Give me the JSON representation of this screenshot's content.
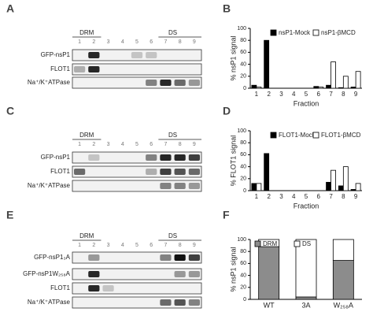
{
  "panel_labels": [
    "A",
    "B",
    "C",
    "D",
    "E",
    "F"
  ],
  "blots": [
    {
      "groups": [
        "DRM",
        "DS"
      ],
      "lanes": [
        "1",
        "2",
        "3",
        "4",
        "5",
        "6",
        "7",
        "8",
        "9"
      ],
      "rows": [
        "GFP-nsP1",
        "FLOT1",
        "Na⁺/K⁺ATPase"
      ]
    },
    {
      "groups": [
        "DRM",
        "DS"
      ],
      "lanes": [
        "1",
        "2",
        "3",
        "4",
        "5",
        "6",
        "7",
        "8",
        "9"
      ],
      "rows": [
        "GFP-nsP1",
        "FLOT1",
        "Na⁺/K⁺ATPase"
      ]
    },
    {
      "groups": [
        "DRM",
        "DS"
      ],
      "lanes": [
        "1",
        "2",
        "3",
        "4",
        "5",
        "6",
        "7",
        "8",
        "9"
      ],
      "rows": [
        "GFP-nsP1₃A",
        "GFP-nsP1W₂₅₈A",
        "FLOT1",
        "Na⁺/K⁺ATPase"
      ]
    }
  ],
  "chart_data": [
    {
      "type": "bar",
      "ylabel": "% nsP1 signal",
      "xlabel": "Fraction",
      "categories": [
        "1",
        "2",
        "3",
        "4",
        "5",
        "6",
        "7",
        "8",
        "9"
      ],
      "series": [
        {
          "name": "nsP1-Mock",
          "color": "#000000",
          "values": [
            5,
            80,
            0,
            0,
            0,
            3,
            5,
            1,
            2
          ]
        },
        {
          "name": "nsP1-βMCD",
          "color": "#ffffff",
          "values": [
            2,
            0,
            0,
            0,
            0,
            2,
            44,
            20,
            28
          ]
        }
      ],
      "ylim": [
        0,
        100
      ],
      "yticks": [
        0,
        20,
        40,
        60,
        80,
        100
      ]
    },
    {
      "type": "bar",
      "ylabel": "% FLOT1 signal",
      "xlabel": "Fraction",
      "categories": [
        "1",
        "2",
        "3",
        "4",
        "5",
        "6",
        "7",
        "8",
        "9"
      ],
      "series": [
        {
          "name": "FLOT1-Mock",
          "color": "#000000",
          "values": [
            12,
            62,
            0,
            0,
            0,
            0,
            14,
            8,
            2
          ]
        },
        {
          "name": "FLOT1-βMCD",
          "color": "#ffffff",
          "values": [
            12,
            0,
            0,
            0,
            0,
            0,
            34,
            40,
            12
          ]
        }
      ],
      "ylim": [
        0,
        100
      ],
      "yticks": [
        0,
        20,
        40,
        60,
        80,
        100
      ]
    },
    {
      "type": "stacked_bar",
      "ylabel": "% nsP1 signal",
      "categories": [
        "WT",
        "3A",
        "W₂₅₈A"
      ],
      "series": [
        {
          "name": "DRM",
          "color": "#8c8c8c",
          "values": [
            88,
            4,
            65
          ]
        },
        {
          "name": "DS",
          "color": "#ffffff",
          "values": [
            12,
            96,
            35
          ]
        }
      ],
      "ylim": [
        0,
        100
      ],
      "yticks": [
        0,
        20,
        40,
        60,
        80,
        100
      ]
    }
  ]
}
